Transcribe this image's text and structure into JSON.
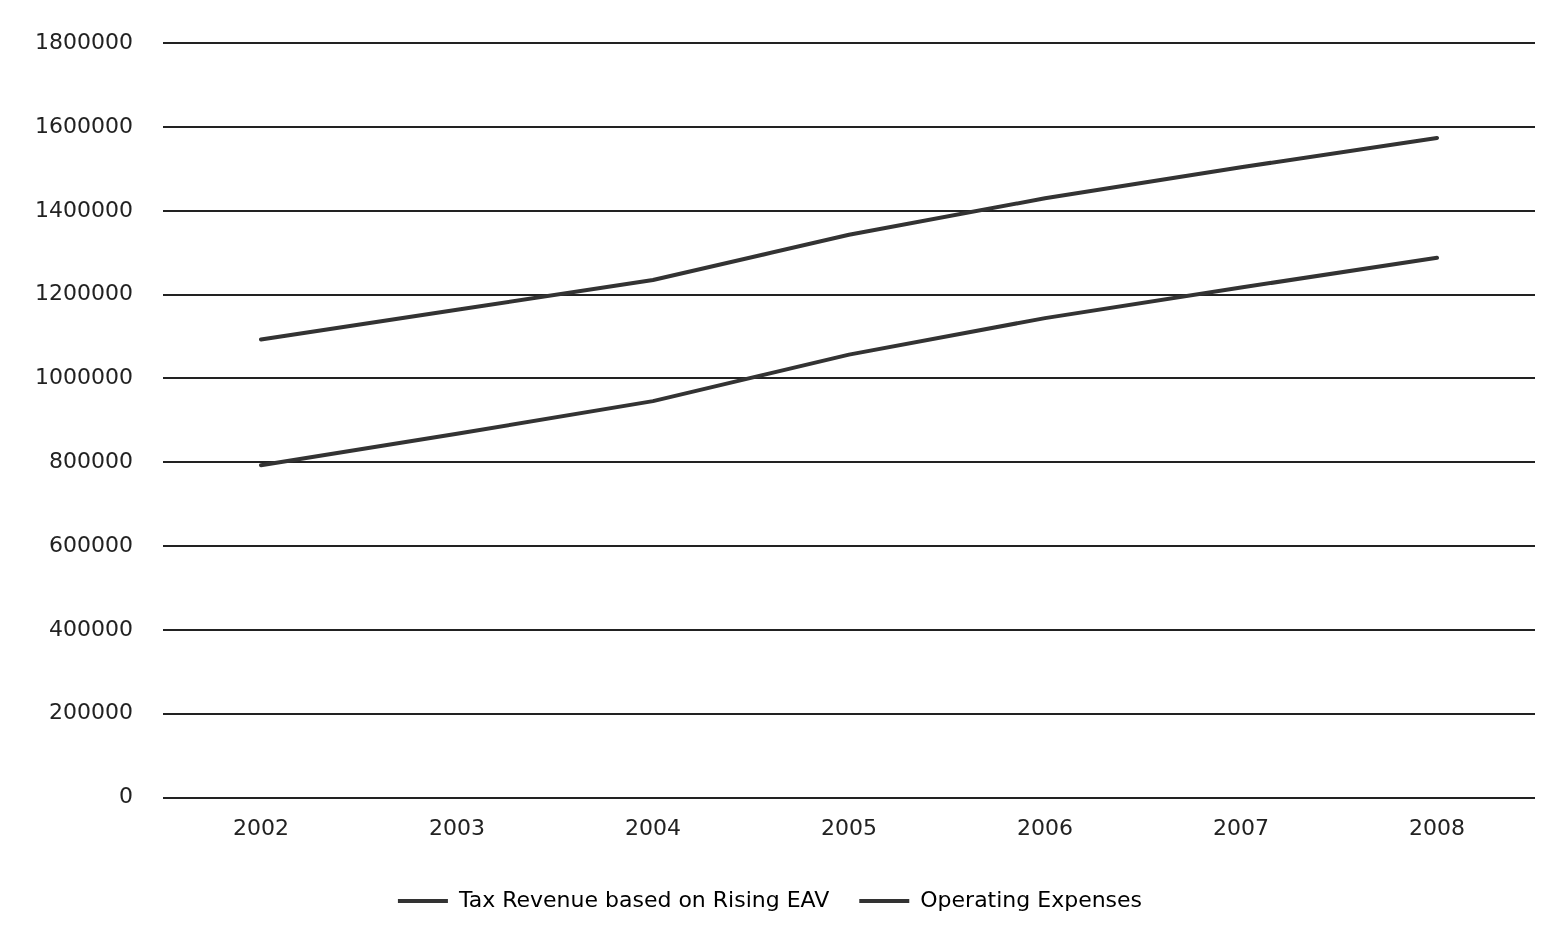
{
  "chart_data": {
    "type": "line",
    "categories": [
      "2002",
      "2003",
      "2004",
      "2005",
      "2006",
      "2007",
      "2008"
    ],
    "series": [
      {
        "name": "Tax Revenue based on Rising EAV",
        "color": "#333333",
        "values": [
          793000,
          868000,
          946000,
          1057000,
          1144000,
          1217000,
          1288000
        ]
      },
      {
        "name": "Operating Expenses",
        "color": "#333333",
        "values": [
          1093000,
          1164000,
          1235000,
          1343000,
          1430000,
          1504000,
          1574000
        ]
      }
    ],
    "ylim": [
      0,
      1800000
    ],
    "yticks": [
      0,
      200000,
      400000,
      600000,
      800000,
      1000000,
      1200000,
      1400000,
      1600000,
      1800000
    ],
    "grid": "y",
    "legend": "bottom",
    "marker": "none",
    "line_style": "solid"
  }
}
